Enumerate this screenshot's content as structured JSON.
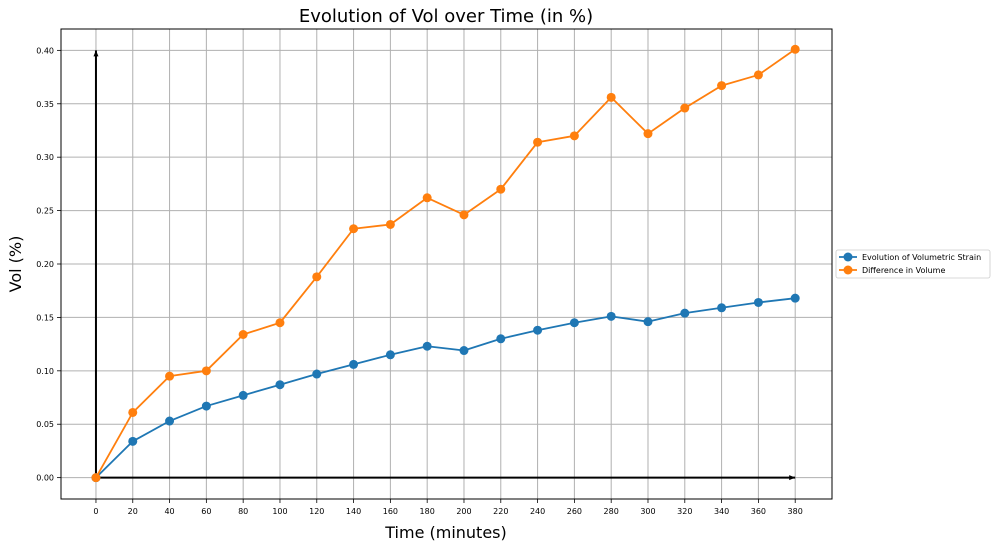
{
  "chart_data": {
    "type": "line",
    "title": "Evolution of Vol over Time (in %)",
    "xlabel": "Time (minutes)",
    "ylabel": "Vol (%)",
    "x": [
      0,
      20,
      40,
      60,
      80,
      100,
      120,
      140,
      160,
      180,
      200,
      220,
      240,
      260,
      280,
      300,
      320,
      340,
      360,
      380
    ],
    "xlim": [
      -19,
      400
    ],
    "ylim": [
      -0.02,
      0.42
    ],
    "xticks": [
      0,
      20,
      40,
      60,
      80,
      100,
      120,
      140,
      160,
      180,
      200,
      220,
      240,
      260,
      280,
      300,
      320,
      340,
      360,
      380
    ],
    "yticks": [
      "0.00",
      "0.05",
      "0.10",
      "0.15",
      "0.20",
      "0.25",
      "0.30",
      "0.35",
      "0.40"
    ],
    "grid": true,
    "legend_position": "right",
    "series": [
      {
        "name": "Evolution of Volumetric Strain",
        "color": "#1f77b4",
        "values": [
          0.0,
          0.034,
          0.053,
          0.067,
          0.077,
          0.087,
          0.097,
          0.106,
          0.115,
          0.123,
          0.119,
          0.13,
          0.138,
          0.145,
          0.151,
          0.146,
          0.154,
          0.159,
          0.164,
          0.168
        ]
      },
      {
        "name": "Difference in Volume",
        "color": "#ff7f0e",
        "values": [
          0.0,
          0.061,
          0.095,
          0.1,
          0.134,
          0.145,
          0.188,
          0.233,
          0.237,
          0.262,
          0.246,
          0.27,
          0.314,
          0.32,
          0.356,
          0.322,
          0.346,
          0.367,
          0.377,
          0.401
        ]
      }
    ],
    "annotations": [
      {
        "type": "arrow",
        "from": [
          0,
          0
        ],
        "to": [
          380,
          0
        ]
      },
      {
        "type": "arrow",
        "from": [
          0,
          0
        ],
        "to": [
          0,
          0.4
        ]
      }
    ]
  }
}
